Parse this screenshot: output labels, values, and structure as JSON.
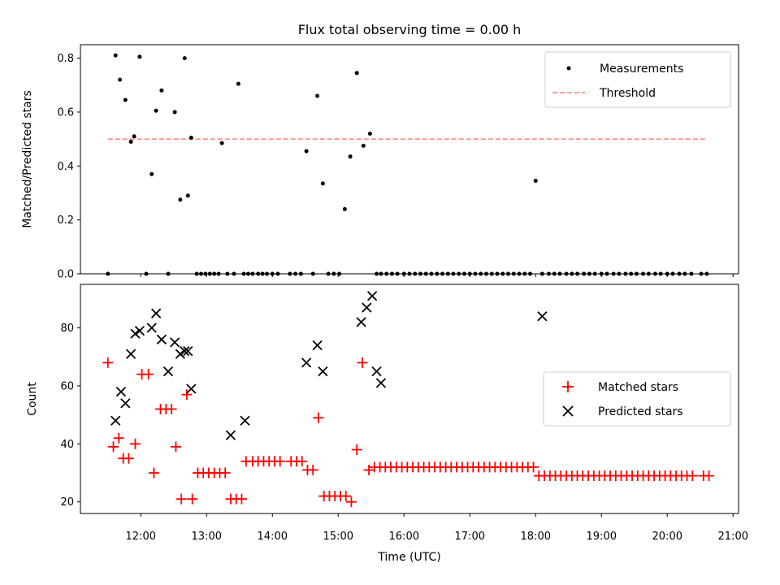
{
  "chart_data": [
    {
      "type": "scatter",
      "title": "Flux total observing time = 0.00 h",
      "xlabel": "",
      "ylabel": "Matched/Predicted stars",
      "xlim": [
        "11:05",
        "21:05"
      ],
      "ylim": [
        0,
        0.85
      ],
      "yticks": [
        "0.0",
        "0.2",
        "0.4",
        "0.6",
        "0.8"
      ],
      "legend": {
        "position": "top-right",
        "entries": [
          "Measurements",
          "Threshold"
        ]
      },
      "threshold": {
        "name": "Threshold",
        "y": 0.5,
        "x_start": "11:30",
        "x_end": "20:35",
        "color": "#ff7f7f",
        "style": "dashed"
      },
      "series": [
        {
          "name": "Measurements",
          "marker": "dot",
          "color": "#000000",
          "x": [
            "11:30",
            "11:37",
            "11:41",
            "11:46",
            "11:51",
            "11:54",
            "11:59",
            "12:05",
            "12:10",
            "12:14",
            "12:19",
            "12:25",
            "12:31",
            "12:36",
            "12:40",
            "12:43",
            "12:46",
            "12:51",
            "12:55",
            "12:59",
            "13:03",
            "13:07",
            "13:11",
            "13:14",
            "13:19",
            "13:25",
            "13:29",
            "13:34",
            "13:38",
            "13:42",
            "13:47",
            "13:51",
            "13:55",
            "14:00",
            "14:05",
            "14:16",
            "14:21",
            "14:26",
            "14:31",
            "14:37",
            "14:41",
            "14:46",
            "14:51",
            "14:56",
            "15:01",
            "15:06",
            "15:11",
            "15:17",
            "15:23",
            "15:29",
            "15:35",
            "15:39",
            "15:44",
            "15:49",
            "15:54",
            "16:00",
            "16:05",
            "16:10",
            "16:15",
            "16:20",
            "16:25",
            "16:30",
            "16:35",
            "16:40",
            "16:45",
            "16:50",
            "16:55",
            "17:00",
            "17:05",
            "17:10",
            "17:15",
            "17:20",
            "17:25",
            "17:30",
            "17:35",
            "17:40",
            "17:45",
            "17:50",
            "17:55",
            "18:00",
            "18:06",
            "18:12",
            "18:17",
            "18:22",
            "18:28",
            "18:33",
            "18:38",
            "18:44",
            "18:49",
            "18:54",
            "19:00",
            "19:05",
            "19:11",
            "19:16",
            "19:22",
            "19:27",
            "19:32",
            "19:38",
            "19:43",
            "19:49",
            "19:54",
            "20:00",
            "20:05",
            "20:11",
            "20:16",
            "20:22",
            "20:31",
            "20:36"
          ],
          "y": [
            0,
            0.81,
            0.72,
            0.645,
            0.49,
            0.51,
            0.805,
            0,
            0.37,
            0.605,
            0.68,
            0,
            0.6,
            0.275,
            0.8,
            0.29,
            0.505,
            0,
            0,
            0,
            0,
            0,
            0,
            0.485,
            0,
            0,
            0.705,
            0,
            0,
            0,
            0,
            0,
            0,
            0,
            0,
            0,
            0,
            0,
            0.455,
            0,
            0.66,
            0.335,
            0,
            0,
            0,
            0.24,
            0.435,
            0.745,
            0.475,
            0.52,
            0,
            0,
            0,
            0,
            0,
            0,
            0,
            0,
            0,
            0,
            0,
            0,
            0,
            0,
            0,
            0,
            0,
            0,
            0,
            0,
            0,
            0,
            0,
            0,
            0,
            0,
            0,
            0,
            0,
            0.345,
            0,
            0,
            0,
            0,
            0,
            0,
            0,
            0,
            0,
            0,
            0,
            0,
            0,
            0,
            0,
            0,
            0,
            0,
            0,
            0,
            0,
            0,
            0,
            0,
            0,
            0,
            0,
            0
          ]
        }
      ]
    },
    {
      "type": "scatter",
      "title": "",
      "xlabel": "Time (UTC)",
      "ylabel": "Count",
      "xlim": [
        "11:05",
        "21:05"
      ],
      "ylim": [
        16,
        95
      ],
      "xticks": [
        "12:00",
        "13:00",
        "14:00",
        "15:00",
        "16:00",
        "17:00",
        "18:00",
        "19:00",
        "20:00",
        "21:00"
      ],
      "yticks": [
        "20",
        "40",
        "60",
        "80"
      ],
      "legend": {
        "position": "center-right",
        "entries": [
          "Matched stars",
          "Predicted stars"
        ]
      },
      "series": [
        {
          "name": "Matched stars",
          "marker": "plus",
          "color": "#ff0000",
          "x": [
            "11:30",
            "11:35",
            "11:40",
            "11:44",
            "11:49",
            "11:55",
            "12:01",
            "12:07",
            "12:12",
            "12:18",
            "12:23",
            "12:28",
            "12:32",
            "12:37",
            "12:42",
            "12:47",
            "12:52",
            "12:57",
            "13:02",
            "13:07",
            "13:12",
            "13:17",
            "13:22",
            "13:27",
            "13:32",
            "13:36",
            "13:42",
            "13:47",
            "13:52",
            "13:57",
            "14:02",
            "14:07",
            "14:17",
            "14:22",
            "14:27",
            "14:32",
            "14:37",
            "14:42",
            "14:47",
            "14:52",
            "14:57",
            "15:02",
            "15:07",
            "15:12",
            "15:17",
            "15:22",
            "15:28",
            "15:33",
            "15:38",
            "15:43",
            "15:48",
            "15:53",
            "15:58",
            "16:03",
            "16:08",
            "16:13",
            "16:18",
            "16:23",
            "16:28",
            "16:33",
            "16:38",
            "16:43",
            "16:48",
            "16:53",
            "16:58",
            "17:03",
            "17:08",
            "17:13",
            "17:18",
            "17:23",
            "17:28",
            "17:33",
            "17:38",
            "17:43",
            "17:48",
            "17:53",
            "17:58",
            "18:03",
            "18:08",
            "18:13",
            "18:18",
            "18:23",
            "18:28",
            "18:33",
            "18:38",
            "18:43",
            "18:48",
            "18:53",
            "18:58",
            "19:03",
            "19:08",
            "19:13",
            "19:18",
            "19:23",
            "19:28",
            "19:33",
            "19:38",
            "19:43",
            "19:48",
            "19:53",
            "19:58",
            "20:03",
            "20:08",
            "20:13",
            "20:18",
            "20:23",
            "20:33",
            "20:38"
          ],
          "y": [
            68,
            39,
            42,
            35,
            35,
            40,
            64,
            64,
            30,
            52,
            52,
            52,
            39,
            21,
            57,
            21,
            30,
            30,
            30,
            30,
            30,
            30,
            21,
            21,
            21,
            34,
            34,
            34,
            34,
            34,
            34,
            34,
            34,
            34,
            34,
            31,
            31,
            49,
            22,
            22,
            22,
            22,
            22,
            20,
            38,
            68,
            31,
            32,
            32,
            32,
            32,
            32,
            32,
            32,
            32,
            32,
            32,
            32,
            32,
            32,
            32,
            32,
            32,
            32,
            32,
            32,
            32,
            32,
            32,
            32,
            32,
            32,
            32,
            32,
            32,
            32,
            32,
            29,
            29,
            29,
            29,
            29,
            29,
            29,
            29,
            29,
            29,
            29,
            29,
            29,
            29,
            29,
            29,
            29,
            29,
            29,
            29,
            29,
            29,
            29,
            29,
            29,
            29,
            29,
            29,
            29,
            29,
            29
          ]
        },
        {
          "name": "Predicted stars",
          "marker": "x",
          "color": "#000000",
          "x": [
            "11:37",
            "11:42",
            "11:46",
            "11:51",
            "11:55",
            "11:59",
            "12:10",
            "12:14",
            "12:19",
            "12:25",
            "12:31",
            "12:36",
            "12:40",
            "12:43",
            "12:46",
            "13:22",
            "13:35",
            "14:31",
            "14:41",
            "14:46",
            "15:21",
            "15:26",
            "15:31",
            "15:35",
            "15:39",
            "18:06"
          ],
          "y": [
            48,
            58,
            54,
            71,
            78,
            79,
            80,
            85,
            76,
            65,
            75,
            71,
            72,
            72,
            59,
            43,
            48,
            68,
            74,
            65,
            82,
            87,
            91,
            65,
            61,
            84
          ]
        }
      ]
    }
  ]
}
